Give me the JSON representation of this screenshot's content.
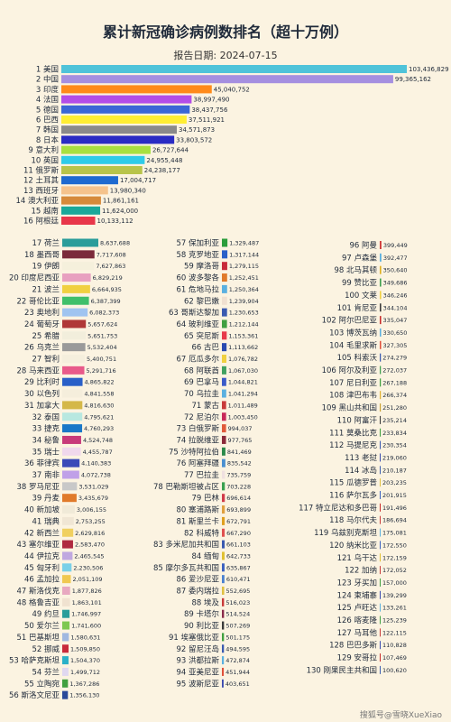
{
  "title": "累计新冠确诊病例数排名（超十万例）",
  "date_label": "报告日期:",
  "date_value": "2024-07-15",
  "watermark": "搜狐号@雪晓XueXiao",
  "chart_data": {
    "type": "bar",
    "title": "累计新冠确诊病例数排名（超十万例）",
    "panels": [
      {
        "name": "top",
        "xlim": [
          0,
          103436829
        ],
        "items": [
          {
            "rank": 1,
            "country": "美国",
            "value": 103436829,
            "color": "#4fc3d9"
          },
          {
            "rank": 2,
            "country": "中国",
            "value": 99365162,
            "color": "#a58fe0"
          },
          {
            "rank": 3,
            "country": "印度",
            "value": 45040752,
            "color": "#ff8a1a"
          },
          {
            "rank": 4,
            "country": "法国",
            "value": 38997490,
            "color": "#b34de8"
          },
          {
            "rank": 5,
            "country": "德国",
            "value": 38437756,
            "color": "#3b66d6"
          },
          {
            "rank": 6,
            "country": "巴西",
            "value": 37511921,
            "color": "#ffee33"
          },
          {
            "rank": 7,
            "country": "韩国",
            "value": 34571873,
            "color": "#8a8a8a"
          },
          {
            "rank": 8,
            "country": "日本",
            "value": 33803572,
            "color": "#2a2cc4"
          },
          {
            "rank": 9,
            "country": "意大利",
            "value": 26727644,
            "color": "#a8e040"
          },
          {
            "rank": 10,
            "country": "英国",
            "value": 24955448,
            "color": "#2ecbe8"
          },
          {
            "rank": 11,
            "country": "俄罗斯",
            "value": 24238177,
            "color": "#b8c44a"
          },
          {
            "rank": 12,
            "country": "土耳其",
            "value": 17004717,
            "color": "#1e6ad0"
          },
          {
            "rank": 13,
            "country": "西班牙",
            "value": 13980340,
            "color": "#f5c38c"
          },
          {
            "rank": 14,
            "country": "澳大利亚",
            "value": 11861161,
            "color": "#d68a3a"
          },
          {
            "rank": 15,
            "country": "越南",
            "value": 11624000,
            "color": "#1aa89a"
          },
          {
            "rank": 16,
            "country": "阿根廷",
            "value": 10133112,
            "color": "#e8374a"
          }
        ]
      },
      {
        "name": "col1",
        "xlim": [
          0,
          8637688
        ],
        "items": [
          {
            "rank": 17,
            "country": "荷兰",
            "value": 8637688,
            "color": "#2a9d9a"
          },
          {
            "rank": 18,
            "country": "墨西哥",
            "value": 7717608,
            "color": "#7b2a3a"
          },
          {
            "rank": 19,
            "country": "伊朗",
            "value": 7627863,
            "color": "#f5f0dc"
          },
          {
            "rank": 20,
            "country": "印度尼西亚",
            "value": 6829219,
            "color": "#e8a0c0"
          },
          {
            "rank": 21,
            "country": "波兰",
            "value": 6664935,
            "color": "#f0d040"
          },
          {
            "rank": 22,
            "country": "哥伦比亚",
            "value": 6387399,
            "color": "#3fbf6a"
          },
          {
            "rank": 23,
            "country": "奥地利",
            "value": 6082373,
            "color": "#a0c4f0"
          },
          {
            "rank": 24,
            "country": "葡萄牙",
            "value": 5657624,
            "color": "#b03838"
          },
          {
            "rank": 25,
            "country": "希腊",
            "value": 5651753,
            "color": "#f2eedc"
          },
          {
            "rank": 26,
            "country": "乌克兰",
            "value": 5532404,
            "color": "#9a9a9a"
          },
          {
            "rank": 27,
            "country": "智利",
            "value": 5400751,
            "color": "#f5efdd"
          },
          {
            "rank": 28,
            "country": "马来西亚",
            "value": 5291716,
            "color": "#e85a8a"
          },
          {
            "rank": 29,
            "country": "比利时",
            "value": 4865822,
            "color": "#2a60c8"
          },
          {
            "rank": 30,
            "country": "以色列",
            "value": 4841558,
            "color": "#f5eedc"
          },
          {
            "rank": 31,
            "country": "加拿大",
            "value": 4816630,
            "color": "#d4b848"
          },
          {
            "rank": 32,
            "country": "泰国",
            "value": 4795621,
            "color": "#b8e8e0"
          },
          {
            "rank": 33,
            "country": "捷克",
            "value": 4760293,
            "color": "#1a78c8"
          },
          {
            "rank": 34,
            "country": "秘鲁",
            "value": 4524748,
            "color": "#c83a7a"
          },
          {
            "rank": 35,
            "country": "瑞士",
            "value": 4455787,
            "color": "#f0d8ec"
          },
          {
            "rank": 36,
            "country": "菲律宾",
            "value": 4140383,
            "color": "#3a4ab8"
          },
          {
            "rank": 37,
            "country": "南非",
            "value": 4072738,
            "color": "#c0a0e8"
          },
          {
            "rank": 38,
            "country": "罗马尼亚",
            "value": 3531029,
            "color": "#c8c8c8"
          },
          {
            "rank": 39,
            "country": "丹麦",
            "value": 3435679,
            "color": "#e07a2a"
          },
          {
            "rank": 40,
            "country": "新加坡",
            "value": 3006155,
            "color": "#f0ead8"
          },
          {
            "rank": 41,
            "country": "瑞典",
            "value": 2753255,
            "color": "#f0e6d4"
          },
          {
            "rank": 42,
            "country": "新西兰",
            "value": 2629816,
            "color": "#f0d060"
          },
          {
            "rank": 43,
            "country": "塞尔维亚",
            "value": 2583470,
            "color": "#b02a40"
          },
          {
            "rank": 44,
            "country": "伊拉克",
            "value": 2465545,
            "color": "#c0a8e0"
          },
          {
            "rank": 45,
            "country": "匈牙利",
            "value": 2230506,
            "color": "#7ad0e8"
          },
          {
            "rank": 46,
            "country": "孟加拉",
            "value": 2051109,
            "color": "#f0c850"
          },
          {
            "rank": 47,
            "country": "斯洛伐克",
            "value": 1877826,
            "color": "#e8a8c0"
          },
          {
            "rank": 48,
            "country": "格鲁吉亚",
            "value": 1863101,
            "color": "#f0e2d0"
          },
          {
            "rank": 49,
            "country": "约旦",
            "value": 1746997,
            "color": "#2a9d9a"
          },
          {
            "rank": 50,
            "country": "爱尔兰",
            "value": 1741600,
            "color": "#7ec850"
          },
          {
            "rank": 51,
            "country": "巴基斯坦",
            "value": 1580631,
            "color": "#a0b8e0"
          },
          {
            "rank": 52,
            "country": "挪威",
            "value": 1509850,
            "color": "#c82a3a"
          },
          {
            "rank": 53,
            "country": "哈萨克斯坦",
            "value": 1504370,
            "color": "#2ab0c8"
          },
          {
            "rank": 54,
            "country": "芬兰",
            "value": 1499712,
            "color": "#e0d8f0"
          },
          {
            "rank": 55,
            "country": "立陶宛",
            "value": 1367286,
            "color": "#40a040"
          },
          {
            "rank": 56,
            "country": "斯洛文尼亚",
            "value": 1356130,
            "color": "#2a4a9a"
          }
        ]
      },
      {
        "name": "col2",
        "xlim": [
          0,
          8637688
        ],
        "items": [
          {
            "rank": 57,
            "country": "保加利亚",
            "value": 1329487,
            "color": "#2a9d3a"
          },
          {
            "rank": 58,
            "country": "克罗地亚",
            "value": 1317144,
            "color": "#2a60c8"
          },
          {
            "rank": 59,
            "country": "摩洛哥",
            "value": 1279115,
            "color": "#c82a3a"
          },
          {
            "rank": 60,
            "country": "波多黎各",
            "value": 1252451,
            "color": "#e07a2a"
          },
          {
            "rank": 61,
            "country": "危地马拉",
            "value": 1250364,
            "color": "#5ab0e0"
          },
          {
            "rank": 62,
            "country": "黎巴嫩",
            "value": 1239904,
            "color": "#f0e0d0"
          },
          {
            "rank": 63,
            "country": "哥斯达黎加",
            "value": 1230653,
            "color": "#3a5ab0"
          },
          {
            "rank": 64,
            "country": "玻利维亚",
            "value": 1212144,
            "color": "#40a040"
          },
          {
            "rank": 65,
            "country": "突尼斯",
            "value": 1153361,
            "color": "#e83a4a"
          },
          {
            "rank": 66,
            "country": "古巴",
            "value": 1113662,
            "color": "#2a4ab0"
          },
          {
            "rank": 67,
            "country": "厄瓜多尔",
            "value": 1076782,
            "color": "#f0d040"
          },
          {
            "rank": 68,
            "country": "阿联酋",
            "value": 1067030,
            "color": "#40a060"
          },
          {
            "rank": 69,
            "country": "巴拿马",
            "value": 1044821,
            "color": "#3a5ac8"
          },
          {
            "rank": 70,
            "country": "乌拉圭",
            "value": 1041294,
            "color": "#5ab0e0"
          },
          {
            "rank": 71,
            "country": "蒙古",
            "value": 1011489,
            "color": "#c83a3a"
          },
          {
            "rank": 72,
            "country": "尼泊尔",
            "value": 1003450,
            "color": "#c82a5a"
          },
          {
            "rank": 73,
            "country": "白俄罗斯",
            "value": 994037,
            "color": "#e05a3a"
          },
          {
            "rank": 74,
            "country": "拉脱维亚",
            "value": 977765,
            "color": "#8a2a3a"
          },
          {
            "rank": 75,
            "country": "沙特阿拉伯",
            "value": 841469,
            "color": "#2a8a4a"
          },
          {
            "rank": 76,
            "country": "阿塞拜疆",
            "value": 835542,
            "color": "#4a90d0"
          },
          {
            "rank": 77,
            "country": "巴拉圭",
            "value": 735759,
            "color": "#f0e0e0"
          },
          {
            "rank": 78,
            "country": "巴勒斯坦被占区",
            "value": 703228,
            "color": "#3aa050"
          },
          {
            "rank": 79,
            "country": "巴林",
            "value": 696614,
            "color": "#d03a4a"
          },
          {
            "rank": 80,
            "country": "塞浦路斯",
            "value": 693899,
            "color": "#e0a040"
          },
          {
            "rank": 81,
            "country": "斯里兰卡",
            "value": 672791,
            "color": "#e0a020"
          },
          {
            "rank": 82,
            "country": "科威特",
            "value": 667290,
            "color": "#e05050"
          },
          {
            "rank": 83,
            "country": "多米尼加共和国",
            "value": 661103,
            "color": "#3a5ab0"
          },
          {
            "rank": 84,
            "country": "缅甸",
            "value": 642733,
            "color": "#e0c030"
          },
          {
            "rank": 85,
            "country": "摩尔多瓦共和国",
            "value": 635867,
            "color": "#3a60c0"
          },
          {
            "rank": 86,
            "country": "爱沙尼亚",
            "value": 610471,
            "color": "#4a80d0"
          },
          {
            "rank": 87,
            "country": "委内瑞拉",
            "value": 552695,
            "color": "#e0c040"
          },
          {
            "rank": 88,
            "country": "埃及",
            "value": 516023,
            "color": "#c83a3a"
          },
          {
            "rank": 89,
            "country": "卡塔尔",
            "value": 514524,
            "color": "#8a2a4a"
          },
          {
            "rank": 90,
            "country": "利比亚",
            "value": 507269,
            "color": "#3a3a3a"
          },
          {
            "rank": 91,
            "country": "埃塞俄比亚",
            "value": 501175,
            "color": "#40a040"
          },
          {
            "rank": 92,
            "country": "留尼汪岛",
            "value": 494595,
            "color": "#3a5ab0"
          },
          {
            "rank": 93,
            "country": "洪都拉斯",
            "value": 472874,
            "color": "#5ab0e0"
          },
          {
            "rank": 94,
            "country": "亚美尼亚",
            "value": 451944,
            "color": "#e0503a"
          },
          {
            "rank": 95,
            "country": "波斯尼亚",
            "value": 403651,
            "color": "#3a4ab0"
          }
        ]
      },
      {
        "name": "col3",
        "xlim": [
          0,
          8637688
        ],
        "items": [
          {
            "rank": 96,
            "country": "阿曼",
            "value": 399449,
            "color": "#d03a3a"
          },
          {
            "rank": 97,
            "country": "卢森堡",
            "value": 392477,
            "color": "#5ab0e0"
          },
          {
            "rank": 98,
            "country": "北马其顿",
            "value": 350640,
            "color": "#e0b020"
          },
          {
            "rank": 99,
            "country": "赞比亚",
            "value": 349686,
            "color": "#40a050"
          },
          {
            "rank": 100,
            "country": "文莱",
            "value": 346246,
            "color": "#f0d040"
          },
          {
            "rank": 101,
            "country": "肯尼亚",
            "value": 344104,
            "color": "#3a3a3a"
          },
          {
            "rank": 102,
            "country": "阿尔巴尼亚",
            "value": 335047,
            "color": "#c82a2a"
          },
          {
            "rank": 103,
            "country": "博茨瓦纳",
            "value": 330650,
            "color": "#5ab0e0"
          },
          {
            "rank": 104,
            "country": "毛里求斯",
            "value": 327305,
            "color": "#e0503a"
          },
          {
            "rank": 105,
            "country": "科索沃",
            "value": 274279,
            "color": "#3a5ab0"
          },
          {
            "rank": 106,
            "country": "阿尔及利亚",
            "value": 272037,
            "color": "#40a050"
          },
          {
            "rank": 107,
            "country": "尼日利亚",
            "value": 267188,
            "color": "#40a040"
          },
          {
            "rank": 108,
            "country": "津巴布韦",
            "value": 266374,
            "color": "#e0b030"
          },
          {
            "rank": 109,
            "country": "黑山共和国",
            "value": 251280,
            "color": "#c8a030"
          },
          {
            "rank": 110,
            "country": "阿富汗",
            "value": 235214,
            "color": "#3a3a3a"
          },
          {
            "rank": 111,
            "country": "莫桑比克",
            "value": 233834,
            "color": "#40a040"
          },
          {
            "rank": 112,
            "country": "马提尼克",
            "value": 230354,
            "color": "#3a5ab0"
          },
          {
            "rank": 113,
            "country": "老挝",
            "value": 219060,
            "color": "#3a4ab0"
          },
          {
            "rank": 114,
            "country": "冰岛",
            "value": 210187,
            "color": "#3a5ab0"
          },
          {
            "rank": 115,
            "country": "瓜德罗普",
            "value": 203235,
            "color": "#e0c040"
          },
          {
            "rank": 116,
            "country": "萨尔瓦多",
            "value": 201915,
            "color": "#3a60c0"
          },
          {
            "rank": 117,
            "country": "特立尼达和多巴哥",
            "value": 191496,
            "color": "#c82a2a"
          },
          {
            "rank": 118,
            "country": "马尔代夫",
            "value": 186694,
            "color": "#c83a3a"
          },
          {
            "rank": 119,
            "country": "乌兹别克斯坦",
            "value": 175081,
            "color": "#5ab0e0"
          },
          {
            "rank": 120,
            "country": "纳米比亚",
            "value": 172550,
            "color": "#3a60c0"
          },
          {
            "rank": 121,
            "country": "乌干达",
            "value": 172159,
            "color": "#e0c030"
          },
          {
            "rank": 122,
            "country": "加纳",
            "value": 172052,
            "color": "#c83a3a"
          },
          {
            "rank": 123,
            "country": "牙买加",
            "value": 157000,
            "color": "#40a040"
          },
          {
            "rank": 124,
            "country": "柬埔寨",
            "value": 139299,
            "color": "#3a4ab0"
          },
          {
            "rank": 125,
            "country": "卢旺达",
            "value": 133261,
            "color": "#5ab0e0"
          },
          {
            "rank": 126,
            "country": "喀麦隆",
            "value": 125239,
            "color": "#40a040"
          },
          {
            "rank": 127,
            "country": "马耳他",
            "value": 122115,
            "color": "#c83a3a"
          },
          {
            "rank": 128,
            "country": "巴巴多斯",
            "value": 110828,
            "color": "#3a4ab0"
          },
          {
            "rank": 129,
            "country": "安哥拉",
            "value": 107469,
            "color": "#c82a2a"
          },
          {
            "rank": 130,
            "country": "刚果民主共和国",
            "value": 100620,
            "color": "#3a5ab0"
          }
        ]
      }
    ]
  }
}
